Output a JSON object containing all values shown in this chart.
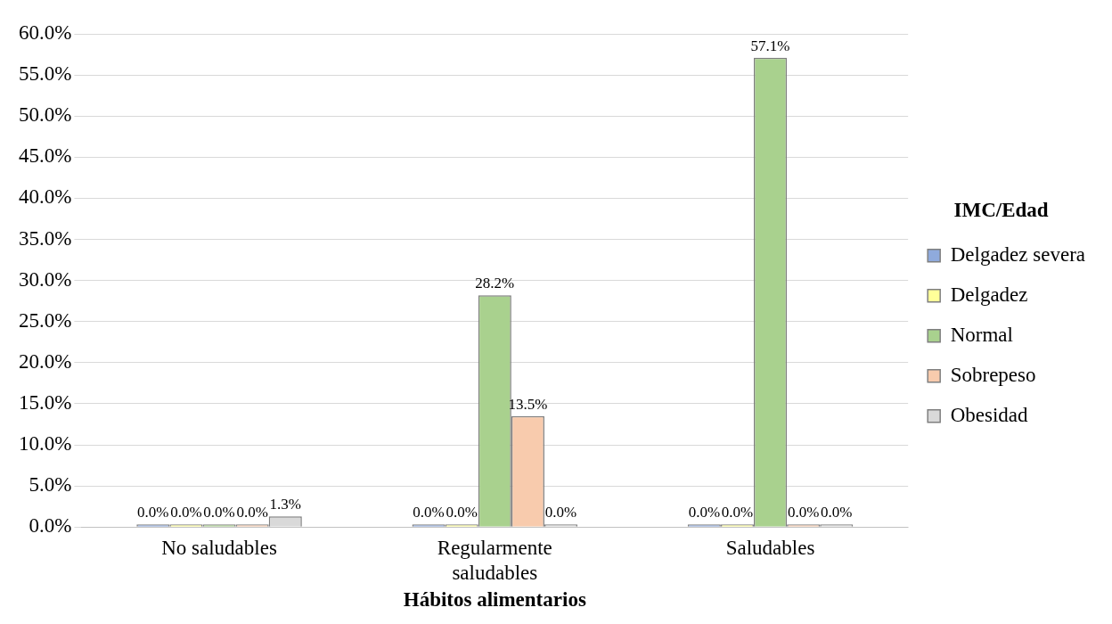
{
  "chart_data": {
    "type": "bar",
    "xlabel": "Hábitos alimentarios",
    "legend_title": "IMC/Edad",
    "categories": [
      "No saludables",
      "Regularmente saludables",
      "Saludables"
    ],
    "series": [
      {
        "name": "Delgadez severa",
        "color": "#8faadc",
        "values": [
          0,
          0,
          0
        ],
        "value_labels": [
          "0.0%",
          "0.0%",
          "0.0%"
        ]
      },
      {
        "name": "Delgadez",
        "color": "#ffff99",
        "values": [
          0,
          0,
          0
        ],
        "value_labels": [
          "0.0%",
          "0.0%",
          "0.0%"
        ]
      },
      {
        "name": "Normal",
        "color": "#a9d18e",
        "values": [
          0,
          28.2,
          57.1
        ],
        "value_labels": [
          "0.0%",
          "28.2%",
          "57.1%"
        ]
      },
      {
        "name": "Sobrepeso",
        "color": "#f8cbad",
        "values": [
          0,
          13.5,
          0
        ],
        "value_labels": [
          "0.0%",
          "13.5%",
          "0.0%"
        ]
      },
      {
        "name": "Obesidad",
        "color": "#d9d9d9",
        "values": [
          1.3,
          0,
          0
        ],
        "value_labels": [
          "1.3%",
          "0.0%",
          "0.0%"
        ]
      }
    ],
    "ylim": [
      0,
      60
    ],
    "yticks": [
      {
        "value": 0,
        "label": "0.0%"
      },
      {
        "value": 5,
        "label": "5.0%"
      },
      {
        "value": 10,
        "label": "10.0%"
      },
      {
        "value": 15,
        "label": "15.0%"
      },
      {
        "value": 20,
        "label": "20.0%"
      },
      {
        "value": 25,
        "label": "25.0%"
      },
      {
        "value": 30,
        "label": "30.0%"
      },
      {
        "value": 35,
        "label": "35.0%"
      },
      {
        "value": 40,
        "label": "40.0%"
      },
      {
        "value": 45,
        "label": "45.0%"
      },
      {
        "value": 50,
        "label": "50.0%"
      },
      {
        "value": 55,
        "label": "55.0%"
      },
      {
        "value": 60,
        "label": "60.0%"
      }
    ],
    "grid": "y",
    "legend": "right"
  }
}
